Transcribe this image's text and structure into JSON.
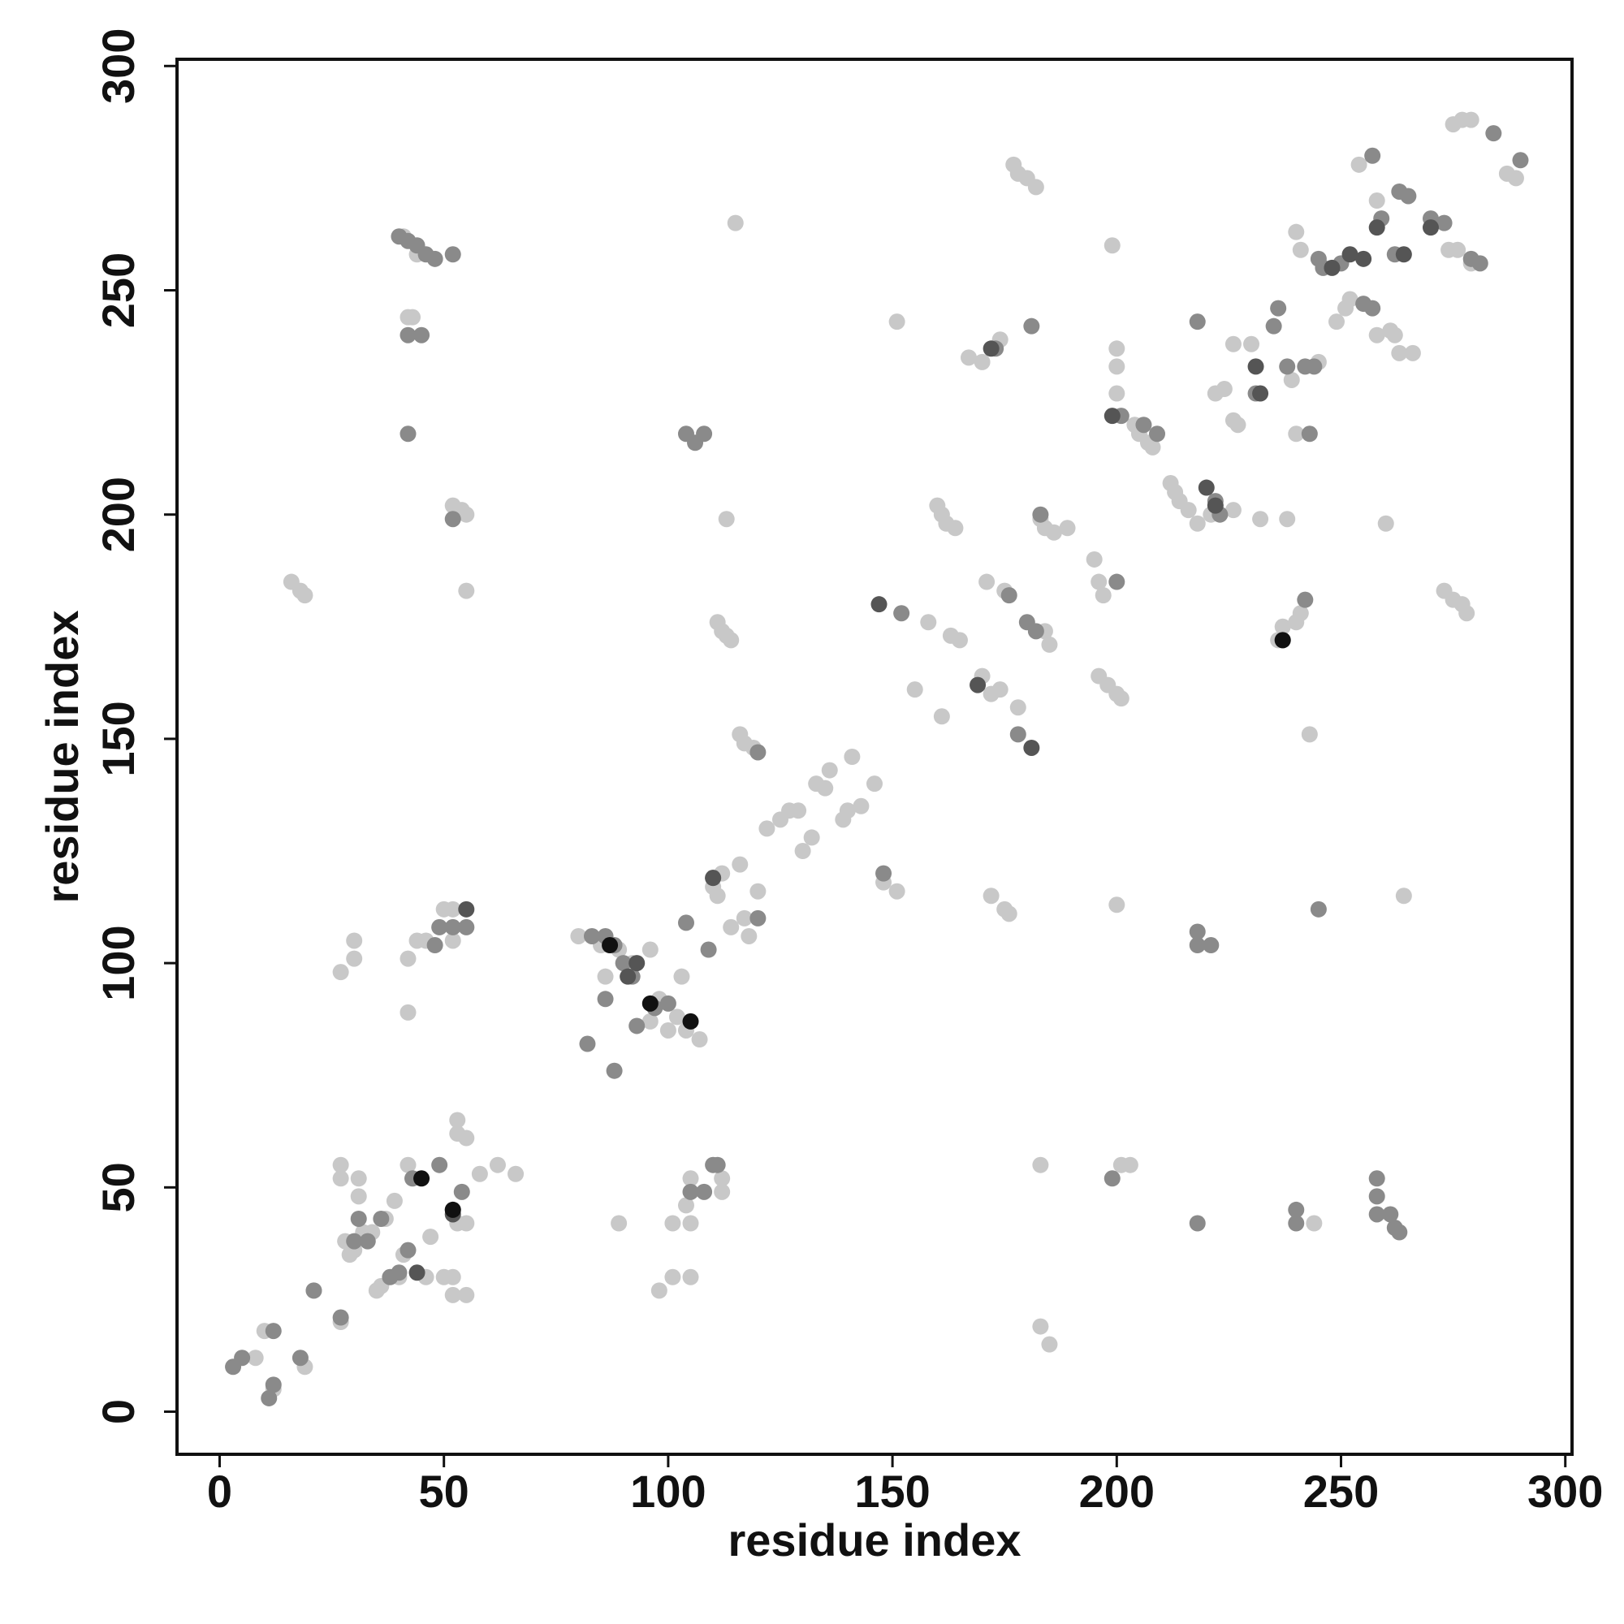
{
  "chart_data": {
    "type": "scatter",
    "xlabel": "residue index",
    "ylabel": "residue index",
    "xlim": [
      -9.5,
      301.5
    ],
    "ylim": [
      -9.5,
      301.5
    ],
    "xticks": [
      0,
      50,
      100,
      150,
      200,
      250,
      300
    ],
    "yticks": [
      0,
      50,
      100,
      150,
      200,
      250,
      300
    ],
    "series": [
      {
        "color": "#c8c8c8",
        "x": [
          10,
          8,
          12,
          19,
          21,
          27,
          27,
          27,
          28,
          29,
          30,
          31,
          31,
          32,
          34,
          35,
          36,
          37,
          39,
          40,
          41,
          42,
          46,
          47,
          50,
          52,
          53,
          52,
          53,
          53,
          55,
          55,
          55,
          58,
          62,
          66,
          16,
          18,
          19,
          27,
          30,
          30,
          42,
          42,
          44,
          46,
          50,
          52,
          52,
          42,
          43,
          44,
          52,
          54,
          55,
          55,
          41,
          80,
          85,
          86,
          89,
          92,
          96,
          96,
          98,
          100,
          102,
          103,
          104,
          107,
          110,
          111,
          112,
          114,
          116,
          117,
          118,
          120,
          122,
          125,
          127,
          129,
          130,
          132,
          133,
          135,
          136,
          139,
          140,
          141,
          143,
          146,
          148,
          151,
          155,
          111,
          112,
          113,
          114,
          115,
          113,
          116,
          117,
          119,
          151,
          89,
          98,
          101,
          101,
          105,
          105,
          104,
          105,
          112,
          112,
          158,
          160,
          161,
          162,
          163,
          164,
          165,
          161,
          167,
          170,
          170,
          171,
          172,
          174,
          174,
          175,
          178,
          172,
          175,
          176,
          177,
          178,
          180,
          182,
          183,
          184,
          186,
          184,
          185,
          189,
          195,
          196,
          197,
          196,
          198,
          200,
          201,
          199,
          200,
          200,
          200,
          200,
          201,
          203,
          204,
          205,
          207,
          208,
          212,
          213,
          214,
          216,
          218,
          221,
          222,
          224,
          226,
          227,
          226,
          230,
          226,
          232,
          236,
          237,
          238,
          239,
          240,
          241,
          240,
          241,
          243,
          240,
          244,
          245,
          249,
          251,
          252,
          254,
          258,
          258,
          260,
          261,
          262,
          263,
          264,
          273,
          275,
          277,
          278,
          274,
          276,
          279,
          275,
          277,
          279,
          287,
          289,
          183,
          185,
          183,
          266
        ],
        "values": [
          18,
          12,
          5,
          10,
          27,
          20,
          55,
          52,
          38,
          35,
          36,
          52,
          48,
          40,
          40,
          27,
          28,
          43,
          47,
          30,
          35,
          55,
          30,
          39,
          30,
          26,
          42,
          30,
          65,
          62,
          61,
          26,
          42,
          53,
          55,
          53,
          185,
          183,
          182,
          98,
          101,
          105,
          89,
          101,
          105,
          105,
          112,
          105,
          112,
          244,
          244,
          258,
          202,
          201,
          200,
          183,
          262,
          106,
          104,
          97,
          103,
          100,
          103,
          87,
          92,
          85,
          88,
          97,
          85,
          83,
          117,
          115,
          120,
          108,
          122,
          110,
          106,
          116,
          130,
          132,
          134,
          134,
          125,
          128,
          140,
          139,
          143,
          132,
          134,
          146,
          135,
          140,
          118,
          116,
          161,
          176,
          174,
          173,
          172,
          265,
          199,
          151,
          149,
          148,
          243,
          42,
          27,
          42,
          30,
          30,
          42,
          46,
          52,
          49,
          52,
          176,
          202,
          200,
          198,
          173,
          197,
          172,
          155,
          235,
          234,
          164,
          185,
          160,
          161,
          239,
          183,
          157,
          115,
          112,
          111,
          278,
          276,
          275,
          273,
          199,
          197,
          196,
          174,
          171,
          197,
          190,
          185,
          182,
          164,
          162,
          160,
          159,
          260,
          237,
          233,
          227,
          113,
          55,
          55,
          220,
          218,
          216,
          215,
          207,
          205,
          203,
          201,
          198,
          200,
          227,
          228,
          221,
          220,
          238,
          238,
          201,
          199,
          172,
          175,
          199,
          230,
          176,
          178,
          263,
          259,
          151,
          218,
          42,
          234,
          243,
          246,
          248,
          278,
          270,
          240,
          198,
          241,
          240,
          236,
          115,
          183,
          181,
          180,
          178,
          259,
          259,
          256,
          287,
          288,
          288,
          276,
          275,
          19,
          15,
          55,
          236
        ]
      },
      {
        "color": "#8a8a8a",
        "x": [
          3,
          5,
          11,
          12,
          12,
          18,
          21,
          27,
          30,
          31,
          33,
          36,
          38,
          40,
          42,
          43,
          49,
          52,
          54,
          55,
          48,
          49,
          52,
          40,
          42,
          44,
          46,
          48,
          52,
          42,
          45,
          42,
          52,
          82,
          88,
          86,
          83,
          86,
          88,
          90,
          92,
          93,
          97,
          100,
          104,
          104,
          106,
          108,
          109,
          110,
          120,
          108,
          110,
          105,
          111,
          120,
          148,
          152,
          181,
          180,
          182,
          183,
          176,
          173,
          178,
          200,
          201,
          206,
          209,
          218,
          218,
          221,
          218,
          218,
          223,
          222,
          231,
          235,
          236,
          238,
          240,
          240,
          242,
          243,
          244,
          245,
          246,
          245,
          250,
          255,
          257,
          258,
          258,
          258,
          261,
          262,
          263,
          257,
          259,
          262,
          263,
          265,
          270,
          273,
          284,
          290,
          279,
          281,
          199,
          237,
          242
        ],
        "values": [
          10,
          12,
          3,
          6,
          18,
          12,
          27,
          21,
          38,
          43,
          38,
          43,
          30,
          31,
          36,
          52,
          55,
          45,
          49,
          108,
          104,
          108,
          108,
          262,
          261,
          260,
          258,
          257,
          258,
          240,
          240,
          218,
          199,
          82,
          76,
          92,
          106,
          106,
          104,
          100,
          97,
          86,
          90,
          91,
          109,
          218,
          216,
          218,
          103,
          119,
          110,
          49,
          55,
          49,
          55,
          147,
          120,
          178,
          242,
          176,
          174,
          200,
          182,
          237,
          151,
          185,
          222,
          220,
          218,
          104,
          107,
          104,
          243,
          42,
          200,
          203,
          227,
          242,
          246,
          233,
          45,
          42,
          233,
          218,
          233,
          257,
          255,
          112,
          256,
          247,
          246,
          48,
          52,
          44,
          44,
          41,
          40,
          280,
          266,
          258,
          272,
          271,
          266,
          265,
          285,
          279,
          257,
          256,
          52,
          172,
          181
        ]
      },
      {
        "color": "#555555",
        "x": [
          44,
          52,
          55,
          93,
          91,
          110,
          147,
          169,
          172,
          181,
          199,
          222,
          220,
          231,
          232,
          255,
          258,
          264,
          252,
          270,
          248
        ],
        "values": [
          31,
          44,
          112,
          100,
          97,
          119,
          180,
          162,
          237,
          148,
          222,
          202,
          206,
          233,
          227,
          257,
          264,
          258,
          258,
          264,
          255
        ]
      },
      {
        "color": "#111111",
        "x": [
          45,
          52,
          87,
          105,
          96,
          237
        ],
        "values": [
          52,
          45,
          104,
          87,
          91,
          172
        ]
      }
    ]
  }
}
